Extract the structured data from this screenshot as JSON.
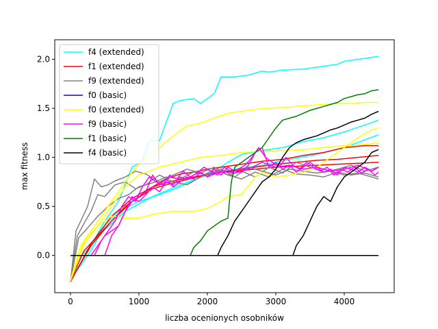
{
  "chart_data": {
    "type": "line",
    "title": "",
    "xlabel": "liczba ocenionych osobników",
    "ylabel": "max fitness",
    "xlim": [
      -230,
      4730
    ],
    "ylim": [
      -0.38,
      2.2
    ],
    "xticks": [
      0,
      1000,
      2000,
      3000,
      4000
    ],
    "yticks": [
      0.0,
      0.5,
      1.0,
      1.5,
      2.0
    ],
    "xtick_labels": [
      "0",
      "1000",
      "2000",
      "3000",
      "4000"
    ],
    "ytick_labels": [
      "0.0",
      "0.5",
      "1.0",
      "1.5",
      "2.0"
    ],
    "grid": false,
    "legend_position": "top-left",
    "series": [
      {
        "name": "f4 (extended)",
        "color": "#00ffff",
        "x": [
          0,
          100,
          300,
          500,
          700,
          900,
          1050,
          1150,
          1300,
          1500,
          1600,
          1800,
          1900,
          2100,
          2200,
          2400,
          2600,
          2800,
          2900,
          3100,
          3400,
          3700,
          3900,
          4000,
          4200,
          4500
        ],
        "y": [
          -0.27,
          -0.05,
          0.1,
          0.35,
          0.55,
          0.9,
          0.96,
          1.17,
          1.17,
          1.55,
          1.58,
          1.6,
          1.55,
          1.65,
          1.82,
          1.82,
          1.84,
          1.88,
          1.87,
          1.89,
          1.9,
          1.93,
          1.95,
          1.98,
          2.0,
          2.03
        ]
      },
      {
        "name": "f4 (extended)",
        "color": "#00ffff",
        "x": [
          0,
          300,
          500,
          700,
          1000,
          1300,
          1600,
          1900,
          2100,
          2300,
          2500,
          2800,
          3100,
          3400,
          3700,
          4000,
          4300,
          4500
        ],
        "y": [
          -0.25,
          0.05,
          0.3,
          0.45,
          0.55,
          0.62,
          0.7,
          0.8,
          0.86,
          0.95,
          1.03,
          1.07,
          1.1,
          1.16,
          1.2,
          1.26,
          1.33,
          1.38
        ]
      },
      {
        "name": "f4 (extended)",
        "color": "#00ffff",
        "x": [
          0,
          400,
          800,
          1200,
          1600,
          2000,
          2400,
          2800,
          3200,
          3600,
          4000,
          4300,
          4500
        ],
        "y": [
          -0.24,
          0.2,
          0.45,
          0.6,
          0.72,
          0.82,
          0.88,
          0.92,
          0.98,
          1.03,
          1.1,
          1.18,
          1.23
        ]
      },
      {
        "name": "f1 (extended)",
        "color": "#ff0000",
        "x": [
          0,
          200,
          400,
          600,
          800,
          1000,
          1200,
          1400,
          1600,
          1800,
          2000,
          2200,
          2500,
          2800,
          3100,
          3400,
          3700,
          4000,
          4300,
          4500
        ],
        "y": [
          -0.25,
          0.05,
          0.2,
          0.35,
          0.5,
          0.6,
          0.7,
          0.78,
          0.83,
          0.85,
          0.88,
          0.9,
          0.93,
          0.96,
          0.98,
          1.02,
          1.05,
          1.1,
          1.12,
          1.12
        ]
      },
      {
        "name": "f1 (extended)",
        "color": "#ff0000",
        "x": [
          0,
          300,
          600,
          900,
          1200,
          1500,
          1800,
          2100,
          2400,
          2700,
          3000,
          3300,
          3600,
          3900,
          4200,
          4500
        ],
        "y": [
          -0.26,
          0.1,
          0.35,
          0.55,
          0.68,
          0.74,
          0.79,
          0.84,
          0.87,
          0.9,
          0.93,
          0.95,
          0.97,
          0.98,
          1.0,
          1.02
        ]
      },
      {
        "name": "f1 (extended)",
        "color": "#ff0000",
        "x": [
          0,
          300,
          600,
          900,
          1200,
          1500,
          1800,
          2100,
          2400,
          2700,
          3000,
          3300,
          3600,
          3900,
          4200,
          4500
        ],
        "y": [
          -0.27,
          0.12,
          0.4,
          0.58,
          0.7,
          0.76,
          0.8,
          0.84,
          0.86,
          0.88,
          0.9,
          0.91,
          0.92,
          0.93,
          0.94,
          0.95
        ]
      },
      {
        "name": "f9 (extended)",
        "color": "#808080",
        "x": [
          0,
          80,
          150,
          250,
          350,
          450,
          550,
          650,
          800,
          950,
          1100,
          1300,
          1500,
          1700,
          1900,
          2100,
          2300,
          2500,
          2700,
          2900,
          3100,
          3300,
          3500,
          3700,
          3900,
          4100,
          4300,
          4500
        ],
        "y": [
          -0.27,
          0.25,
          0.35,
          0.5,
          0.78,
          0.7,
          0.72,
          0.76,
          0.8,
          0.86,
          0.83,
          0.75,
          0.82,
          0.88,
          0.84,
          0.9,
          0.82,
          0.78,
          0.85,
          0.8,
          0.88,
          0.83,
          0.82,
          0.8,
          0.85,
          0.82,
          0.84,
          0.8
        ]
      },
      {
        "name": "f9 (extended)",
        "color": "#808080",
        "x": [
          0,
          100,
          200,
          300,
          400,
          500,
          650,
          800,
          950,
          1100,
          1300,
          1500,
          1700,
          1900,
          2100,
          2300,
          2500,
          2700,
          2900,
          3100,
          3300,
          3500,
          3700,
          3900,
          4100,
          4300,
          4500
        ],
        "y": [
          -0.26,
          0.2,
          0.33,
          0.45,
          0.62,
          0.6,
          0.72,
          0.75,
          0.68,
          0.72,
          0.82,
          0.75,
          0.72,
          0.8,
          0.88,
          0.82,
          0.86,
          0.8,
          0.9,
          0.84,
          0.95,
          0.9,
          0.85,
          0.88,
          0.92,
          0.86,
          0.9
        ]
      },
      {
        "name": "f9 (extended)",
        "color": "#808080",
        "x": [
          0,
          120,
          250,
          400,
          550,
          700,
          850,
          1000,
          1200,
          1400,
          1600,
          1800,
          2000,
          2200,
          2400,
          2600,
          2800,
          3000,
          3200,
          3400,
          3600,
          3800,
          4000,
          4200,
          4400,
          4500
        ],
        "y": [
          -0.26,
          0.18,
          0.28,
          0.4,
          0.5,
          0.58,
          0.62,
          0.7,
          0.74,
          0.8,
          0.78,
          0.85,
          0.82,
          0.88,
          0.8,
          0.9,
          0.86,
          0.82,
          0.88,
          0.86,
          0.84,
          0.86,
          0.82,
          0.84,
          0.8,
          0.78
        ]
      },
      {
        "name": "f0 (basic)",
        "color": "#0000ff",
        "x": [
          0,
          4500
        ],
        "y": [
          0.0,
          0.0
        ]
      },
      {
        "name": "f0 (extended)",
        "color": "#ffff00",
        "x": [
          0,
          150,
          300,
          500,
          700,
          900,
          1100,
          1300,
          1500,
          1700,
          1900,
          2100,
          2300,
          2500,
          2700,
          2900,
          3100,
          3300,
          3500,
          3700,
          3900,
          4100,
          4300,
          4500
        ],
        "y": [
          -0.25,
          0.1,
          0.25,
          0.45,
          0.65,
          0.85,
          1.0,
          1.1,
          1.22,
          1.32,
          1.35,
          1.4,
          1.45,
          1.47,
          1.49,
          1.5,
          1.51,
          1.52,
          1.53,
          1.54,
          1.55,
          1.55,
          1.56,
          1.56
        ]
      },
      {
        "name": "f0 (extended)",
        "color": "#ffff00",
        "x": [
          0,
          200,
          400,
          600,
          800,
          1000,
          1200,
          1500,
          1800,
          2000,
          2200,
          2300,
          2500,
          2700,
          2800,
          3000,
          3200,
          3400,
          3600,
          3800,
          4000,
          4200,
          4400,
          4500
        ],
        "y": [
          -0.26,
          0.15,
          0.3,
          0.4,
          0.38,
          0.38,
          0.42,
          0.45,
          0.45,
          0.48,
          0.55,
          0.6,
          0.62,
          0.8,
          0.85,
          0.8,
          0.82,
          0.85,
          0.9,
          1.0,
          1.1,
          1.2,
          1.28,
          1.3
        ]
      },
      {
        "name": "f0 (extended)",
        "color": "#ffff00",
        "x": [
          0,
          200,
          400,
          600,
          800,
          1000,
          1300,
          1600,
          1900,
          2200,
          2500,
          2800,
          3100,
          3400,
          3700,
          4000,
          4300,
          4500
        ],
        "y": [
          -0.26,
          0.12,
          0.3,
          0.5,
          0.7,
          0.82,
          0.9,
          0.95,
          1.0,
          1.02,
          1.05,
          1.06,
          1.07,
          1.08,
          1.1,
          1.12,
          1.13,
          1.15
        ]
      },
      {
        "name": "f9 (basic)",
        "color": "#ff00ff",
        "x": [
          0,
          500,
          600,
          700,
          800,
          900,
          1000,
          1100,
          1200,
          1300,
          1400,
          1500,
          1600,
          1700,
          1800,
          1900,
          2000,
          2100,
          2200,
          2300,
          2400,
          2500,
          2600,
          2700,
          2800,
          2900,
          3000,
          3100,
          3200,
          3300,
          3400,
          3500,
          3600,
          3700,
          3800,
          3900,
          4000,
          4100,
          4200,
          4300,
          4400,
          4500
        ],
        "y": [
          0.0,
          0.0,
          0.2,
          0.3,
          0.45,
          0.55,
          0.6,
          0.65,
          0.82,
          0.72,
          0.78,
          0.7,
          0.75,
          0.8,
          0.78,
          0.85,
          0.8,
          0.88,
          0.82,
          0.9,
          0.86,
          0.85,
          0.92,
          1.05,
          1.1,
          0.9,
          0.95,
          0.88,
          0.92,
          0.85,
          0.9,
          0.95,
          0.9,
          0.85,
          0.88,
          0.82,
          0.9,
          0.88,
          0.85,
          0.9,
          0.86,
          0.9
        ]
      },
      {
        "name": "f9 (basic)",
        "color": "#ff00ff",
        "x": [
          0,
          350,
          450,
          550,
          650,
          750,
          850,
          950,
          1050,
          1150,
          1250,
          1350,
          1450,
          1550,
          1650,
          1750,
          1850,
          1950,
          2050,
          2150,
          2250,
          2350,
          2450,
          2550,
          2650,
          2750,
          2850,
          2950,
          3050,
          3150,
          3250,
          3350,
          3450,
          3550,
          3650,
          3750,
          3850,
          3950,
          4050,
          4150,
          4250,
          4350,
          4450,
          4500
        ],
        "y": [
          0.0,
          0.0,
          0.15,
          0.25,
          0.35,
          0.5,
          0.6,
          0.55,
          0.7,
          0.8,
          0.75,
          0.72,
          0.82,
          0.78,
          0.86,
          0.8,
          0.84,
          0.9,
          0.86,
          0.82,
          0.9,
          0.85,
          0.88,
          0.92,
          1.0,
          1.1,
          1.0,
          0.95,
          0.9,
          1.0,
          0.92,
          0.88,
          0.95,
          0.9,
          0.86,
          0.9,
          0.82,
          0.88,
          0.85,
          0.9,
          0.84,
          0.88,
          0.82,
          0.85
        ]
      },
      {
        "name": "f9 (basic)",
        "color": "#ff00ff",
        "x": [
          0,
          300,
          400,
          500,
          600,
          700,
          800,
          900,
          1000,
          1100,
          1200,
          1300,
          1400,
          1500,
          1600,
          1700,
          1800,
          1900,
          2000,
          2200,
          2400,
          2600,
          2800,
          3000,
          3200,
          3400,
          3600,
          3800,
          4000,
          4200,
          4400,
          4500
        ],
        "y": [
          0.0,
          0.0,
          0.1,
          0.2,
          0.25,
          0.3,
          0.45,
          0.6,
          0.55,
          0.62,
          0.7,
          0.65,
          0.75,
          0.72,
          0.8,
          0.78,
          0.82,
          0.85,
          0.8,
          0.86,
          0.84,
          0.88,
          0.95,
          0.9,
          0.92,
          0.88,
          0.9,
          0.86,
          0.88,
          0.92,
          0.86,
          0.9
        ]
      },
      {
        "name": "f1 (basic)",
        "color": "#008000",
        "x": [
          0,
          1750,
          1800,
          1900,
          2000,
          2100,
          2200,
          2300,
          2350,
          2400,
          2500,
          2600,
          2700,
          2800,
          2900,
          3000,
          3100,
          3200,
          3300,
          3400,
          3500,
          3600,
          3700,
          3800,
          3900,
          4000,
          4100,
          4200,
          4300,
          4400,
          4500
        ],
        "y": [
          0.0,
          0.0,
          0.08,
          0.15,
          0.25,
          0.3,
          0.35,
          0.38,
          0.75,
          0.9,
          0.95,
          1.0,
          1.05,
          1.1,
          1.2,
          1.3,
          1.38,
          1.4,
          1.42,
          1.45,
          1.48,
          1.5,
          1.52,
          1.54,
          1.56,
          1.6,
          1.62,
          1.64,
          1.65,
          1.68,
          1.69
        ]
      },
      {
        "name": "f4 (basic)",
        "color": "#000000",
        "x": [
          0,
          2150,
          2200,
          2300,
          2400,
          2500,
          2600,
          2700,
          2800,
          2900,
          3000,
          3100,
          3200,
          3300,
          3400,
          3500,
          3600,
          3700,
          3800,
          3900,
          4000,
          4100,
          4200,
          4300,
          4400,
          4500
        ],
        "y": [
          0.0,
          0.0,
          0.08,
          0.2,
          0.35,
          0.45,
          0.55,
          0.65,
          0.75,
          0.8,
          0.88,
          1.0,
          1.1,
          1.15,
          1.18,
          1.2,
          1.22,
          1.25,
          1.28,
          1.3,
          1.33,
          1.36,
          1.38,
          1.4,
          1.44,
          1.47
        ]
      },
      {
        "name": "f4 (basic)",
        "color": "#000000",
        "x": [
          0,
          3250,
          3300,
          3400,
          3500,
          3600,
          3700,
          3800,
          3900,
          4000,
          4100,
          4200,
          4300,
          4400,
          4500
        ],
        "y": [
          0.0,
          0.0,
          0.1,
          0.2,
          0.35,
          0.5,
          0.6,
          0.55,
          0.7,
          0.8,
          0.85,
          0.9,
          0.95,
          1.05,
          1.08
        ]
      },
      {
        "name": "f4 (basic)",
        "color": "#000000",
        "x": [
          0,
          4500
        ],
        "y": [
          0.0,
          0.0
        ]
      }
    ],
    "legend": [
      {
        "label": "f4 (extended)",
        "color": "#00ffff"
      },
      {
        "label": "f1 (extended)",
        "color": "#ff0000"
      },
      {
        "label": "f9 (extended)",
        "color": "#808080"
      },
      {
        "label": "f0 (basic)",
        "color": "#0000ff"
      },
      {
        "label": "f0 (extended)",
        "color": "#ffff00"
      },
      {
        "label": "f9 (basic)",
        "color": "#ff00ff"
      },
      {
        "label": "f1 (basic)",
        "color": "#008000"
      },
      {
        "label": "f4 (basic)",
        "color": "#000000"
      }
    ]
  }
}
